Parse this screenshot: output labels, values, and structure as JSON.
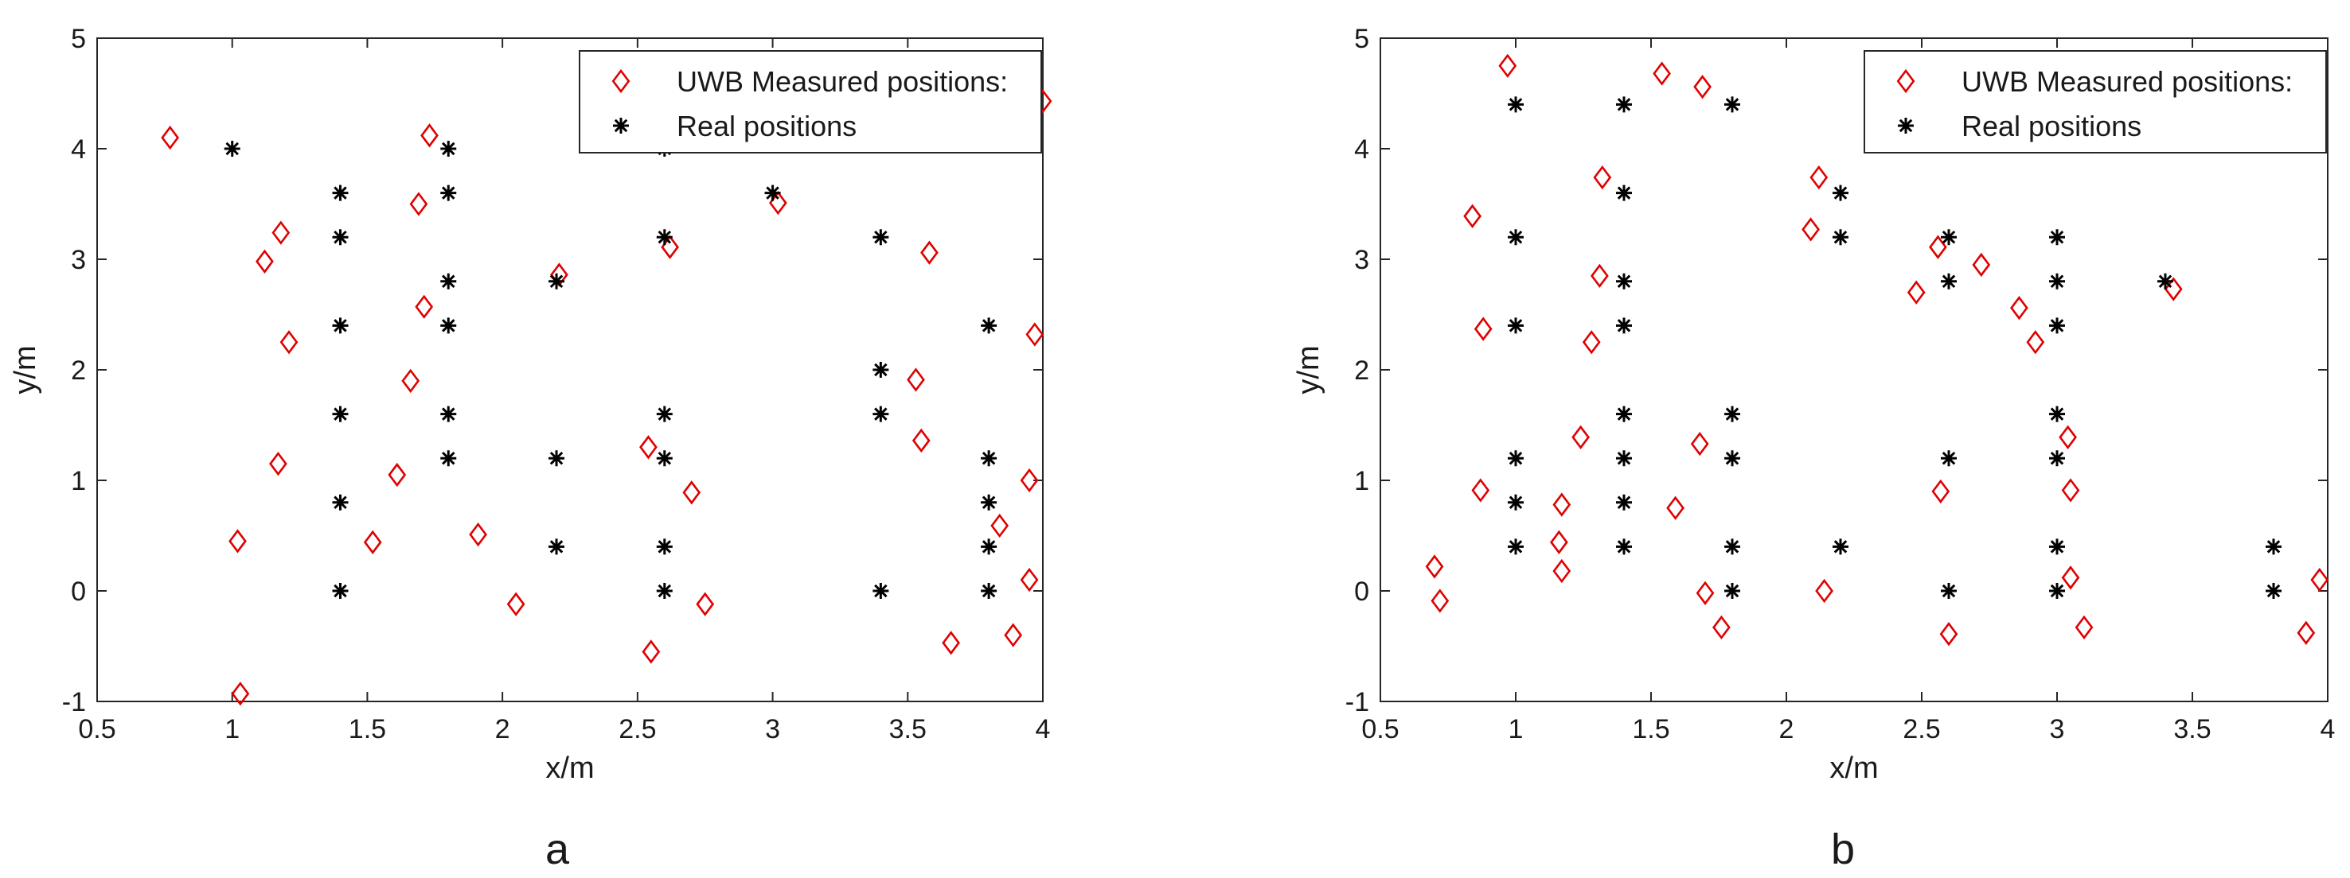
{
  "chart_data": [
    {
      "type": "scatter",
      "panel_label": "a",
      "xlabel": "x/m",
      "ylabel": "y/m",
      "xlim": [
        0.5,
        4
      ],
      "ylim": [
        -1,
        5
      ],
      "xticks": [
        0.5,
        1,
        1.5,
        2,
        2.5,
        3,
        3.5,
        4
      ],
      "yticks": [
        -1,
        0,
        1,
        2,
        3,
        4,
        5
      ],
      "xtick_labels": [
        "0.5",
        "1",
        "1.5",
        "2",
        "2.5",
        "3",
        "3.5",
        "4"
      ],
      "ytick_labels": [
        "-1",
        "0",
        "1",
        "2",
        "3",
        "4",
        "5"
      ],
      "grid": false,
      "legend_position": "top-right",
      "series": [
        {
          "name": "UWB Measured positions:",
          "marker": "diamond",
          "color": "#e00000",
          "points": [
            [
              0.77,
              4.1
            ],
            [
              1.02,
              0.45
            ],
            [
              1.03,
              -0.93
            ],
            [
              1.12,
              2.98
            ],
            [
              1.17,
              1.15
            ],
            [
              1.18,
              3.24
            ],
            [
              1.21,
              2.25
            ],
            [
              1.52,
              0.44
            ],
            [
              1.61,
              1.05
            ],
            [
              1.66,
              1.9
            ],
            [
              1.69,
              3.5
            ],
            [
              1.71,
              2.57
            ],
            [
              1.73,
              4.12
            ],
            [
              1.91,
              0.51
            ],
            [
              2.05,
              -0.12
            ],
            [
              2.21,
              2.86
            ],
            [
              2.54,
              1.3
            ],
            [
              2.55,
              -0.55
            ],
            [
              2.62,
              3.11
            ],
            [
              2.7,
              0.89
            ],
            [
              2.75,
              -0.12
            ],
            [
              3.02,
              3.51
            ],
            [
              3.53,
              1.91
            ],
            [
              3.55,
              1.36
            ],
            [
              3.58,
              3.06
            ],
            [
              3.66,
              -0.47
            ],
            [
              3.84,
              0.59
            ],
            [
              3.89,
              -0.4
            ],
            [
              3.95,
              0.1
            ],
            [
              3.95,
              1.0
            ],
            [
              3.97,
              2.32
            ],
            [
              4.0,
              4.43
            ]
          ]
        },
        {
          "name": "Real positions",
          "marker": "asterisk",
          "color": "#000000",
          "points": [
            [
              1.0,
              4.0
            ],
            [
              1.4,
              0.0
            ],
            [
              1.4,
              0.8
            ],
            [
              1.4,
              1.6
            ],
            [
              1.4,
              2.4
            ],
            [
              1.4,
              3.2
            ],
            [
              1.4,
              3.6
            ],
            [
              1.8,
              1.2
            ],
            [
              1.8,
              1.6
            ],
            [
              1.8,
              2.4
            ],
            [
              1.8,
              2.8
            ],
            [
              1.8,
              3.6
            ],
            [
              1.8,
              4.0
            ],
            [
              2.2,
              0.4
            ],
            [
              2.2,
              1.2
            ],
            [
              2.2,
              2.8
            ],
            [
              2.6,
              0.0
            ],
            [
              2.6,
              0.4
            ],
            [
              2.6,
              1.2
            ],
            [
              2.6,
              1.6
            ],
            [
              2.6,
              3.2
            ],
            [
              2.6,
              4.0
            ],
            [
              3.0,
              3.6
            ],
            [
              3.4,
              0.0
            ],
            [
              3.4,
              1.6
            ],
            [
              3.4,
              2.0
            ],
            [
              3.4,
              3.2
            ],
            [
              3.8,
              0.0
            ],
            [
              3.8,
              0.4
            ],
            [
              3.8,
              0.8
            ],
            [
              3.8,
              1.2
            ],
            [
              3.8,
              2.4
            ]
          ]
        }
      ]
    },
    {
      "type": "scatter",
      "panel_label": "b",
      "xlabel": "x/m",
      "ylabel": "y/m",
      "xlim": [
        0.5,
        4
      ],
      "ylim": [
        -1,
        5
      ],
      "xticks": [
        0.5,
        1,
        1.5,
        2,
        2.5,
        3,
        3.5,
        4
      ],
      "yticks": [
        -1,
        0,
        1,
        2,
        3,
        4,
        5
      ],
      "xtick_labels": [
        "0.5",
        "1",
        "1.5",
        "2",
        "2.5",
        "3",
        "3.5",
        "4"
      ],
      "ytick_labels": [
        "-1",
        "0",
        "1",
        "2",
        "3",
        "4",
        "5"
      ],
      "grid": false,
      "legend_position": "top-right",
      "series": [
        {
          "name": "UWB Measured positions:",
          "marker": "diamond",
          "color": "#e00000",
          "points": [
            [
              0.7,
              0.22
            ],
            [
              0.72,
              -0.09
            ],
            [
              0.84,
              3.39
            ],
            [
              0.87,
              0.91
            ],
            [
              0.88,
              2.37
            ],
            [
              0.97,
              4.75
            ],
            [
              1.16,
              0.44
            ],
            [
              1.17,
              0.18
            ],
            [
              1.17,
              0.78
            ],
            [
              1.24,
              1.39
            ],
            [
              1.28,
              2.25
            ],
            [
              1.31,
              2.85
            ],
            [
              1.32,
              3.74
            ],
            [
              1.54,
              4.68
            ],
            [
              1.59,
              0.75
            ],
            [
              1.68,
              1.33
            ],
            [
              1.69,
              4.56
            ],
            [
              1.7,
              -0.02
            ],
            [
              1.76,
              -0.33
            ],
            [
              2.09,
              3.27
            ],
            [
              2.12,
              3.74
            ],
            [
              2.14,
              0.0
            ],
            [
              2.48,
              2.7
            ],
            [
              2.56,
              3.11
            ],
            [
              2.57,
              0.9
            ],
            [
              2.6,
              -0.39
            ],
            [
              2.72,
              2.95
            ],
            [
              2.86,
              2.56
            ],
            [
              2.92,
              2.25
            ],
            [
              3.04,
              1.39
            ],
            [
              3.05,
              0.91
            ],
            [
              3.05,
              0.12
            ],
            [
              3.1,
              -0.33
            ],
            [
              3.43,
              2.73
            ],
            [
              3.92,
              -0.38
            ],
            [
              3.97,
              0.1
            ]
          ]
        },
        {
          "name": "Real positions",
          "marker": "asterisk",
          "color": "#000000",
          "points": [
            [
              1.0,
              0.4
            ],
            [
              1.0,
              0.8
            ],
            [
              1.0,
              1.2
            ],
            [
              1.0,
              2.4
            ],
            [
              1.0,
              3.2
            ],
            [
              1.0,
              4.4
            ],
            [
              1.4,
              0.4
            ],
            [
              1.4,
              0.8
            ],
            [
              1.4,
              1.2
            ],
            [
              1.4,
              1.6
            ],
            [
              1.4,
              2.4
            ],
            [
              1.4,
              2.8
            ],
            [
              1.4,
              3.6
            ],
            [
              1.4,
              4.4
            ],
            [
              1.8,
              0.0
            ],
            [
              1.8,
              0.4
            ],
            [
              1.8,
              1.2
            ],
            [
              1.8,
              1.6
            ],
            [
              1.8,
              4.4
            ],
            [
              2.2,
              0.4
            ],
            [
              2.2,
              3.2
            ],
            [
              2.2,
              3.6
            ],
            [
              2.6,
              0.0
            ],
            [
              2.6,
              1.2
            ],
            [
              2.6,
              2.8
            ],
            [
              2.6,
              3.2
            ],
            [
              3.0,
              0.0
            ],
            [
              3.0,
              0.4
            ],
            [
              3.0,
              1.2
            ],
            [
              3.0,
              1.6
            ],
            [
              3.0,
              2.4
            ],
            [
              3.0,
              2.8
            ],
            [
              3.0,
              3.2
            ],
            [
              3.4,
              2.8
            ],
            [
              3.8,
              0.0
            ],
            [
              3.8,
              0.4
            ]
          ]
        }
      ]
    }
  ]
}
